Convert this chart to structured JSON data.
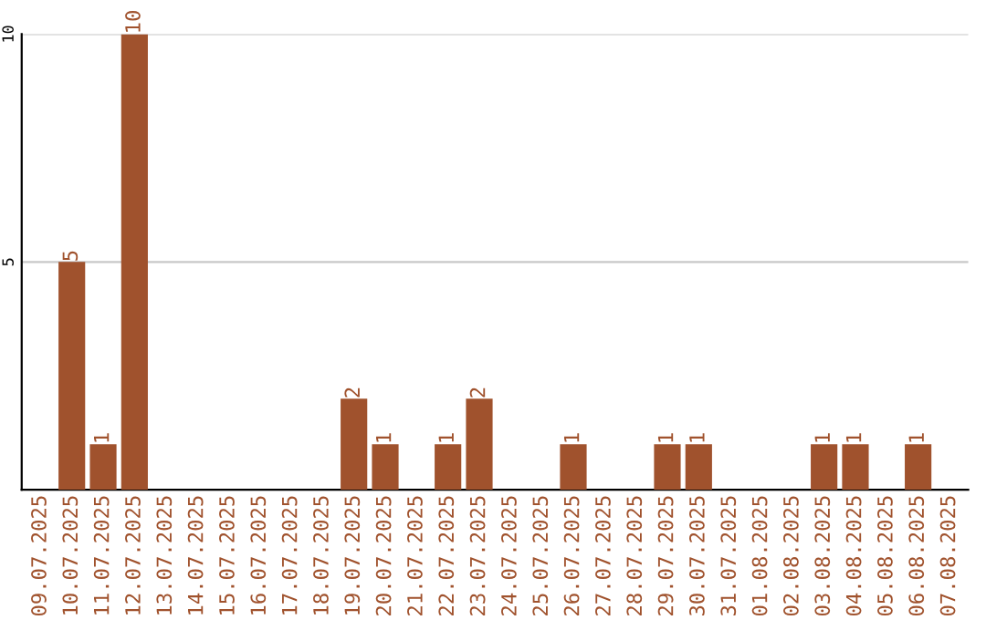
{
  "chart_data": {
    "type": "bar",
    "categories": [
      "09.07.2025",
      "10.07.2025",
      "11.07.2025",
      "12.07.2025",
      "13.07.2025",
      "14.07.2025",
      "15.07.2025",
      "16.07.2025",
      "17.07.2025",
      "18.07.2025",
      "19.07.2025",
      "20.07.2025",
      "21.07.2025",
      "22.07.2025",
      "23.07.2025",
      "24.07.2025",
      "25.07.2025",
      "26.07.2025",
      "27.07.2025",
      "28.07.2025",
      "29.07.2025",
      "30.07.2025",
      "31.07.2025",
      "01.08.2025",
      "02.08.2025",
      "03.08.2025",
      "04.08.2025",
      "05.08.2025",
      "06.08.2025",
      "07.08.2025"
    ],
    "values": [
      0,
      5,
      1,
      10,
      0,
      0,
      0,
      0,
      0,
      0,
      2,
      1,
      0,
      1,
      2,
      0,
      0,
      1,
      0,
      0,
      1,
      1,
      0,
      0,
      0,
      1,
      1,
      0,
      1,
      0
    ],
    "value_labels": [
      null,
      "5",
      "1",
      "10",
      null,
      null,
      null,
      null,
      null,
      null,
      "2",
      "1",
      null,
      "1",
      "2",
      null,
      null,
      "1",
      null,
      null,
      "1",
      "1",
      null,
      null,
      null,
      "1",
      "1",
      null,
      "1",
      null
    ],
    "color": "#a0522d",
    "ylim": [
      0,
      10
    ],
    "yticks": [
      5,
      10
    ],
    "grid": "y"
  }
}
